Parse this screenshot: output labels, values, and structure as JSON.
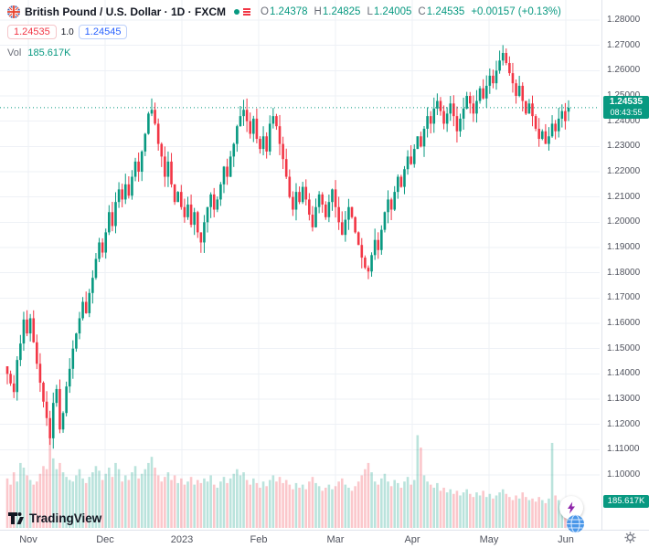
{
  "header": {
    "title": "British Pound / U.S. Dollar · 1D · FXCM",
    "legend": {
      "o_label": "O",
      "o": "1.24378",
      "h_label": "H",
      "h": "1.24825",
      "l_label": "L",
      "l": "1.24005",
      "c_label": "C",
      "c": "1.24535",
      "change": "+0.00157 (+0.13%)"
    },
    "bid": "1.24535",
    "spread": "1.0",
    "ask": "1.24545",
    "vol_label": "Vol",
    "vol_value": "185.617K"
  },
  "axis": {
    "price_min": 1.1,
    "price_max": 1.28,
    "price_step": 0.01,
    "decimals": 5,
    "time_labels": [
      "Nov",
      "Dec",
      "2023",
      "Feb",
      "Mar",
      "Apr",
      "May",
      "Jun"
    ]
  },
  "price_label": {
    "value": "1.24535",
    "countdown": "08:43:55"
  },
  "volume_label": "185.617K",
  "logo": {
    "text": "TradingView"
  },
  "colors": {
    "up": "#089981",
    "down": "#f23645",
    "up_vol": "rgba(8,153,129,0.28)",
    "down_vol": "rgba(242,54,69,0.28)",
    "grid": "#eef1f6",
    "badge_green": "#089981",
    "bid_red": "#f23645",
    "ask_blue": "#2962ff",
    "bolt_purple": "#8e24aa",
    "globe_blue": "#4a97e8"
  },
  "chart_data": {
    "type": "candlestick+volume",
    "symbol": "British Pound / U.S. Dollar",
    "timeframe": "1D",
    "exchange": "FXCM",
    "y_range": [
      1.1,
      1.28
    ],
    "last": {
      "open": 1.24378,
      "high": 1.24825,
      "low": 1.24005,
      "close": 1.24535,
      "change": 0.00157,
      "change_pct": 0.13,
      "volume_k": 185.617
    },
    "first_open": 1.143,
    "wick": 0.0045,
    "max_volume_k": 650,
    "closes": [
      1.14,
      1.1362,
      1.1328,
      1.1455,
      1.152,
      1.1615,
      1.156,
      1.162,
      1.1525,
      1.144,
      1.1365,
      1.129,
      1.1225,
      1.1145,
      1.1285,
      1.134,
      1.118,
      1.1245,
      1.135,
      1.142,
      1.15,
      1.156,
      1.162,
      1.1685,
      1.164,
      1.172,
      1.178,
      1.1855,
      1.192,
      1.188,
      1.196,
      1.204,
      1.1985,
      1.208,
      1.213,
      1.209,
      1.215,
      1.2105,
      1.218,
      1.224,
      1.22,
      1.228,
      1.235,
      1.243,
      1.2445,
      1.239,
      1.231,
      1.226,
      1.218,
      1.224,
      1.215,
      1.208,
      1.212,
      1.206,
      1.202,
      1.207,
      1.199,
      1.204,
      1.196,
      1.192,
      1.2,
      1.206,
      1.211,
      1.205,
      1.209,
      1.215,
      1.222,
      1.218,
      1.226,
      1.231,
      1.238,
      1.242,
      1.2445,
      1.24,
      1.235,
      1.241,
      1.233,
      1.229,
      1.234,
      1.228,
      1.239,
      1.242,
      1.238,
      1.231,
      1.225,
      1.218,
      1.21,
      1.205,
      1.212,
      1.208,
      1.214,
      1.209,
      1.203,
      1.198,
      1.206,
      1.211,
      1.207,
      1.202,
      1.208,
      1.213,
      1.206,
      1.2,
      1.195,
      1.201,
      1.206,
      1.202,
      1.196,
      1.191,
      1.186,
      1.182,
      1.1805,
      1.187,
      1.193,
      1.189,
      1.197,
      1.204,
      1.209,
      1.205,
      1.212,
      1.218,
      1.214,
      1.221,
      1.226,
      1.223,
      1.229,
      1.234,
      1.23,
      1.237,
      1.242,
      1.239,
      1.245,
      1.248,
      1.244,
      1.239,
      1.243,
      1.247,
      1.242,
      1.236,
      1.241,
      1.245,
      1.25,
      1.247,
      1.243,
      1.248,
      1.253,
      1.249,
      1.254,
      1.258,
      1.255,
      1.26,
      1.264,
      1.267,
      1.263,
      1.259,
      1.255,
      1.25,
      1.254,
      1.248,
      1.243,
      1.247,
      1.242,
      1.237,
      1.233,
      1.236,
      1.231,
      1.234,
      1.239,
      1.236,
      1.241,
      1.244,
      1.24,
      1.24535
    ],
    "volumes_k": [
      320,
      280,
      360,
      300,
      420,
      390,
      340,
      310,
      280,
      300,
      350,
      400,
      380,
      600,
      450,
      380,
      420,
      360,
      330,
      310,
      300,
      340,
      380,
      320,
      290,
      330,
      360,
      400,
      370,
      310,
      350,
      390,
      330,
      420,
      380,
      300,
      340,
      310,
      360,
      400,
      320,
      350,
      380,
      420,
      460,
      390,
      340,
      300,
      330,
      360,
      310,
      340,
      290,
      320,
      280,
      300,
      330,
      280,
      310,
      290,
      320,
      300,
      340,
      280,
      260,
      300,
      330,
      290,
      320,
      350,
      380,
      340,
      360,
      310,
      280,
      320,
      290,
      260,
      300,
      270,
      310,
      340,
      300,
      330,
      290,
      310,
      280,
      250,
      290,
      260,
      280,
      250,
      300,
      330,
      290,
      270,
      240,
      260,
      280,
      250,
      270,
      300,
      320,
      280,
      260,
      240,
      270,
      300,
      340,
      380,
      420,
      360,
      300,
      280,
      320,
      350,
      300,
      270,
      310,
      290,
      260,
      300,
      330,
      280,
      310,
      600,
      520,
      340,
      300,
      280,
      260,
      290,
      240,
      260,
      230,
      250,
      220,
      240,
      210,
      230,
      250,
      220,
      200,
      230,
      210,
      240,
      200,
      220,
      190,
      210,
      230,
      250,
      220,
      200,
      180,
      210,
      190,
      230,
      200,
      180,
      190,
      170,
      200,
      180,
      160,
      190,
      550,
      210,
      180,
      160,
      170,
      185.617
    ]
  }
}
